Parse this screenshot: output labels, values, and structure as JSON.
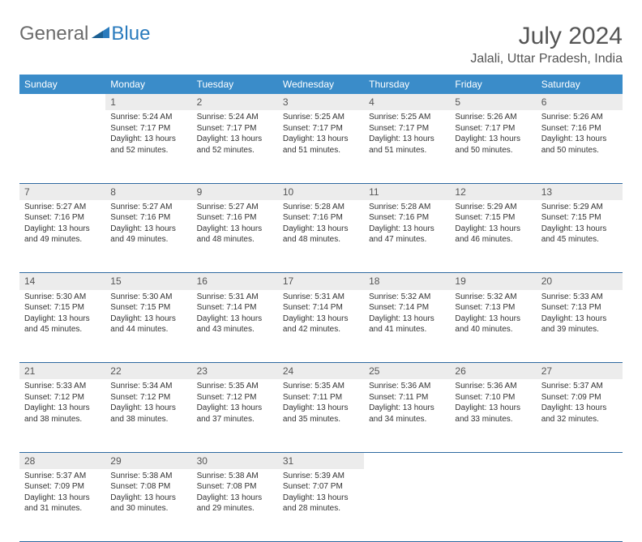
{
  "logo": {
    "general": "General",
    "blue": "Blue"
  },
  "title": "July 2024",
  "location": "Jalali, Uttar Pradesh, India",
  "header_bg": "#3a8cc9",
  "divider_color": "#2f6aa0",
  "daynum_bg": "#ececec",
  "dayHeaders": [
    "Sunday",
    "Monday",
    "Tuesday",
    "Wednesday",
    "Thursday",
    "Friday",
    "Saturday"
  ],
  "weeks": [
    [
      null,
      {
        "n": "1",
        "sr": "Sunrise: 5:24 AM",
        "ss": "Sunset: 7:17 PM",
        "d1": "Daylight: 13 hours",
        "d2": "and 52 minutes."
      },
      {
        "n": "2",
        "sr": "Sunrise: 5:24 AM",
        "ss": "Sunset: 7:17 PM",
        "d1": "Daylight: 13 hours",
        "d2": "and 52 minutes."
      },
      {
        "n": "3",
        "sr": "Sunrise: 5:25 AM",
        "ss": "Sunset: 7:17 PM",
        "d1": "Daylight: 13 hours",
        "d2": "and 51 minutes."
      },
      {
        "n": "4",
        "sr": "Sunrise: 5:25 AM",
        "ss": "Sunset: 7:17 PM",
        "d1": "Daylight: 13 hours",
        "d2": "and 51 minutes."
      },
      {
        "n": "5",
        "sr": "Sunrise: 5:26 AM",
        "ss": "Sunset: 7:17 PM",
        "d1": "Daylight: 13 hours",
        "d2": "and 50 minutes."
      },
      {
        "n": "6",
        "sr": "Sunrise: 5:26 AM",
        "ss": "Sunset: 7:16 PM",
        "d1": "Daylight: 13 hours",
        "d2": "and 50 minutes."
      }
    ],
    [
      {
        "n": "7",
        "sr": "Sunrise: 5:27 AM",
        "ss": "Sunset: 7:16 PM",
        "d1": "Daylight: 13 hours",
        "d2": "and 49 minutes."
      },
      {
        "n": "8",
        "sr": "Sunrise: 5:27 AM",
        "ss": "Sunset: 7:16 PM",
        "d1": "Daylight: 13 hours",
        "d2": "and 49 minutes."
      },
      {
        "n": "9",
        "sr": "Sunrise: 5:27 AM",
        "ss": "Sunset: 7:16 PM",
        "d1": "Daylight: 13 hours",
        "d2": "and 48 minutes."
      },
      {
        "n": "10",
        "sr": "Sunrise: 5:28 AM",
        "ss": "Sunset: 7:16 PM",
        "d1": "Daylight: 13 hours",
        "d2": "and 48 minutes."
      },
      {
        "n": "11",
        "sr": "Sunrise: 5:28 AM",
        "ss": "Sunset: 7:16 PM",
        "d1": "Daylight: 13 hours",
        "d2": "and 47 minutes."
      },
      {
        "n": "12",
        "sr": "Sunrise: 5:29 AM",
        "ss": "Sunset: 7:15 PM",
        "d1": "Daylight: 13 hours",
        "d2": "and 46 minutes."
      },
      {
        "n": "13",
        "sr": "Sunrise: 5:29 AM",
        "ss": "Sunset: 7:15 PM",
        "d1": "Daylight: 13 hours",
        "d2": "and 45 minutes."
      }
    ],
    [
      {
        "n": "14",
        "sr": "Sunrise: 5:30 AM",
        "ss": "Sunset: 7:15 PM",
        "d1": "Daylight: 13 hours",
        "d2": "and 45 minutes."
      },
      {
        "n": "15",
        "sr": "Sunrise: 5:30 AM",
        "ss": "Sunset: 7:15 PM",
        "d1": "Daylight: 13 hours",
        "d2": "and 44 minutes."
      },
      {
        "n": "16",
        "sr": "Sunrise: 5:31 AM",
        "ss": "Sunset: 7:14 PM",
        "d1": "Daylight: 13 hours",
        "d2": "and 43 minutes."
      },
      {
        "n": "17",
        "sr": "Sunrise: 5:31 AM",
        "ss": "Sunset: 7:14 PM",
        "d1": "Daylight: 13 hours",
        "d2": "and 42 minutes."
      },
      {
        "n": "18",
        "sr": "Sunrise: 5:32 AM",
        "ss": "Sunset: 7:14 PM",
        "d1": "Daylight: 13 hours",
        "d2": "and 41 minutes."
      },
      {
        "n": "19",
        "sr": "Sunrise: 5:32 AM",
        "ss": "Sunset: 7:13 PM",
        "d1": "Daylight: 13 hours",
        "d2": "and 40 minutes."
      },
      {
        "n": "20",
        "sr": "Sunrise: 5:33 AM",
        "ss": "Sunset: 7:13 PM",
        "d1": "Daylight: 13 hours",
        "d2": "and 39 minutes."
      }
    ],
    [
      {
        "n": "21",
        "sr": "Sunrise: 5:33 AM",
        "ss": "Sunset: 7:12 PM",
        "d1": "Daylight: 13 hours",
        "d2": "and 38 minutes."
      },
      {
        "n": "22",
        "sr": "Sunrise: 5:34 AM",
        "ss": "Sunset: 7:12 PM",
        "d1": "Daylight: 13 hours",
        "d2": "and 38 minutes."
      },
      {
        "n": "23",
        "sr": "Sunrise: 5:35 AM",
        "ss": "Sunset: 7:12 PM",
        "d1": "Daylight: 13 hours",
        "d2": "and 37 minutes."
      },
      {
        "n": "24",
        "sr": "Sunrise: 5:35 AM",
        "ss": "Sunset: 7:11 PM",
        "d1": "Daylight: 13 hours",
        "d2": "and 35 minutes."
      },
      {
        "n": "25",
        "sr": "Sunrise: 5:36 AM",
        "ss": "Sunset: 7:11 PM",
        "d1": "Daylight: 13 hours",
        "d2": "and 34 minutes."
      },
      {
        "n": "26",
        "sr": "Sunrise: 5:36 AM",
        "ss": "Sunset: 7:10 PM",
        "d1": "Daylight: 13 hours",
        "d2": "and 33 minutes."
      },
      {
        "n": "27",
        "sr": "Sunrise: 5:37 AM",
        "ss": "Sunset: 7:09 PM",
        "d1": "Daylight: 13 hours",
        "d2": "and 32 minutes."
      }
    ],
    [
      {
        "n": "28",
        "sr": "Sunrise: 5:37 AM",
        "ss": "Sunset: 7:09 PM",
        "d1": "Daylight: 13 hours",
        "d2": "and 31 minutes."
      },
      {
        "n": "29",
        "sr": "Sunrise: 5:38 AM",
        "ss": "Sunset: 7:08 PM",
        "d1": "Daylight: 13 hours",
        "d2": "and 30 minutes."
      },
      {
        "n": "30",
        "sr": "Sunrise: 5:38 AM",
        "ss": "Sunset: 7:08 PM",
        "d1": "Daylight: 13 hours",
        "d2": "and 29 minutes."
      },
      {
        "n": "31",
        "sr": "Sunrise: 5:39 AM",
        "ss": "Sunset: 7:07 PM",
        "d1": "Daylight: 13 hours",
        "d2": "and 28 minutes."
      },
      null,
      null,
      null
    ]
  ]
}
